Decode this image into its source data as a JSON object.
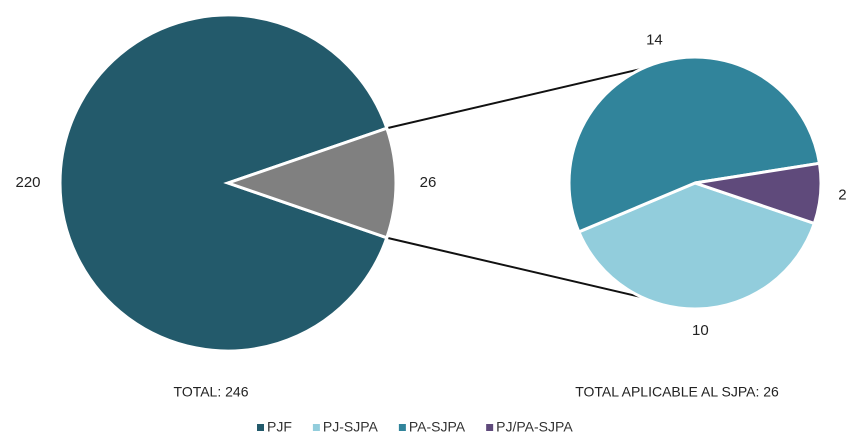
{
  "chart_data": [
    {
      "type": "pie",
      "total_label": "TOTAL: 246",
      "categories": [
        "PJF",
        null
      ],
      "values": [
        220,
        26
      ],
      "colors": [
        "#235a6b",
        "#808080"
      ]
    },
    {
      "type": "pie",
      "total_label": "TOTAL APLICABLE AL SJPA: 26",
      "categories": [
        "PJ-SJPA",
        "PA-SJPA",
        "PJ/PA-SJPA"
      ],
      "values": [
        10,
        14,
        2
      ],
      "colors": [
        "#92cddc",
        "#31849b",
        "#5f4a7b"
      ]
    }
  ]
}
